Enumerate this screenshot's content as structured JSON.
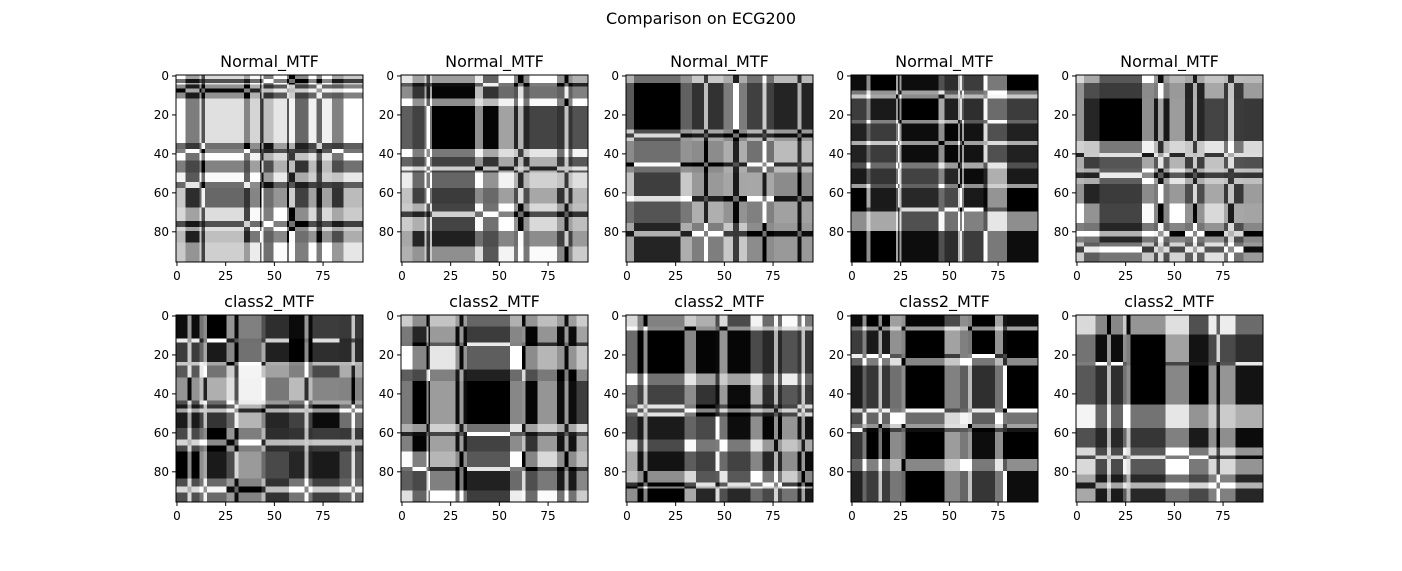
{
  "figure": {
    "suptitle": "Comparison on ECG200"
  },
  "colors": {
    "background": "#ffffff",
    "axis": "#000000",
    "colormap": "gray"
  },
  "chart_data": [
    {
      "type": "heatmap",
      "title": "Normal_MTF",
      "colormap": "gray",
      "size": 96,
      "xticks": [
        0,
        25,
        50,
        75
      ],
      "yticks": [
        0,
        20,
        40,
        60,
        80
      ],
      "bins": [
        0,
        5,
        12,
        35,
        38,
        44,
        50,
        58,
        68,
        80,
        86,
        96
      ],
      "levels": [
        1.0,
        0.1,
        0.88,
        0.0,
        0.95,
        0.3,
        0.92,
        0.25,
        0.85,
        0.3,
        0.9
      ],
      "noise_rows": [
        [
          2,
          3
        ],
        [
          7,
          8
        ],
        [
          38,
          39
        ],
        [
          55,
          57
        ],
        [
          75,
          77
        ]
      ],
      "noise_cols": [
        [
          13,
          14
        ],
        [
          43,
          44
        ],
        [
          57,
          60
        ],
        [
          72,
          74
        ]
      ]
    },
    {
      "type": "heatmap",
      "title": "Normal_MTF",
      "colormap": "gray",
      "size": 96,
      "xticks": [
        0,
        25,
        50,
        75
      ],
      "yticks": [
        0,
        20,
        40,
        60,
        80
      ],
      "bins": [
        0,
        6,
        12,
        16,
        38,
        42,
        50,
        58,
        66,
        80,
        88,
        96
      ],
      "levels": [
        0.9,
        0.2,
        0.95,
        0.0,
        0.95,
        0.2,
        0.95,
        0.3,
        0.85,
        0.25,
        0.8
      ],
      "noise_rows": [
        [
          4,
          5
        ],
        [
          47,
          48
        ],
        [
          70,
          72
        ]
      ],
      "noise_cols": [
        [
          13,
          14
        ],
        [
          60,
          62
        ],
        [
          84,
          85
        ]
      ]
    },
    {
      "type": "heatmap",
      "title": "Normal_MTF",
      "colormap": "gray",
      "size": 96,
      "xticks": [
        0,
        25,
        50,
        75
      ],
      "yticks": [
        0,
        20,
        40,
        60,
        80
      ],
      "bins": [
        0,
        4,
        28,
        34,
        50,
        62,
        76,
        96
      ],
      "levels": [
        0.7,
        0.0,
        0.6,
        0.55,
        0.65,
        0.5,
        0.6
      ],
      "noise_rows": [
        [
          30,
          31
        ],
        [
          45,
          46
        ],
        [
          62,
          64
        ],
        [
          80,
          82
        ]
      ],
      "noise_cols": [
        [
          40,
          41
        ],
        [
          55,
          57
        ],
        [
          70,
          71
        ],
        [
          88,
          89
        ]
      ]
    },
    {
      "type": "heatmap",
      "title": "Normal_MTF",
      "colormap": "gray",
      "size": 96,
      "xticks": [
        0,
        25,
        50,
        75
      ],
      "yticks": [
        0,
        20,
        40,
        60,
        80
      ],
      "bins": [
        0,
        8,
        10,
        23,
        25,
        45,
        48,
        56,
        58,
        68,
        80,
        96
      ],
      "levels": [
        0.05,
        0.9,
        0.1,
        0.92,
        0.05,
        0.9,
        0.15,
        0.88,
        0.1,
        0.9,
        0.05
      ],
      "noise_rows": [
        [
          10,
          11
        ],
        [
          34,
          35
        ],
        [
          68,
          69
        ]
      ],
      "noise_cols": [
        [
          24,
          25
        ],
        [
          55,
          56
        ],
        [
          68,
          69
        ]
      ]
    },
    {
      "type": "heatmap",
      "title": "Normal_MTF",
      "colormap": "gray",
      "size": 96,
      "xticks": [
        0,
        25,
        50,
        75
      ],
      "yticks": [
        0,
        20,
        40,
        60,
        80
      ],
      "bins": [
        0,
        4,
        12,
        34,
        40,
        48,
        56,
        66,
        76,
        86,
        96
      ],
      "levels": [
        0.85,
        0.3,
        0.0,
        0.95,
        0.35,
        0.9,
        0.3,
        0.85,
        0.3,
        0.6
      ],
      "noise_rows": [
        [
          40,
          41
        ],
        [
          50,
          52
        ],
        [
          80,
          82
        ],
        [
          88,
          90
        ]
      ],
      "noise_cols": [
        [
          42,
          44
        ],
        [
          60,
          61
        ],
        [
          78,
          80
        ]
      ]
    },
    {
      "type": "heatmap",
      "title": "class2_MTF",
      "colormap": "gray",
      "size": 96,
      "xticks": [
        0,
        25,
        50,
        75
      ],
      "yticks": [
        0,
        20,
        40,
        60,
        80
      ],
      "bins": [
        0,
        12,
        14,
        26,
        32,
        44,
        46,
        58,
        70,
        84,
        96
      ],
      "levels": [
        0.05,
        0.7,
        0.1,
        0.8,
        0.95,
        0.9,
        0.15,
        0.2,
        0.1,
        0.4
      ],
      "noise_rows": [
        [
          12,
          13
        ],
        [
          24,
          25
        ],
        [
          48,
          49
        ],
        [
          64,
          66
        ],
        [
          88,
          90
        ]
      ],
      "noise_cols": [
        [
          6,
          7
        ],
        [
          14,
          15
        ],
        [
          30,
          31
        ],
        [
          66,
          67
        ],
        [
          90,
          91
        ]
      ]
    },
    {
      "type": "heatmap",
      "title": "class2_MTF",
      "colormap": "gray",
      "size": 96,
      "xticks": [
        0,
        25,
        50,
        75
      ],
      "yticks": [
        0,
        20,
        40,
        60,
        80
      ],
      "bins": [
        0,
        6,
        14,
        28,
        34,
        56,
        62,
        70,
        80,
        90,
        96
      ],
      "levels": [
        0.8,
        0.15,
        0.9,
        0.1,
        0.0,
        0.9,
        0.2,
        0.85,
        0.1,
        0.8
      ],
      "noise_rows": [
        [
          14,
          15
        ],
        [
          60,
          61
        ],
        [
          78,
          79
        ]
      ],
      "noise_cols": [
        [
          13,
          14
        ],
        [
          30,
          31
        ],
        [
          62,
          63
        ],
        [
          84,
          85
        ]
      ]
    },
    {
      "type": "heatmap",
      "title": "class2_MTF",
      "colormap": "gray",
      "size": 96,
      "xticks": [
        0,
        25,
        50,
        75
      ],
      "yticks": [
        0,
        20,
        40,
        60,
        80
      ],
      "bins": [
        0,
        6,
        30,
        36,
        46,
        52,
        64,
        70,
        80,
        88,
        96
      ],
      "levels": [
        0.85,
        0.0,
        0.9,
        0.2,
        0.85,
        0.05,
        0.9,
        0.15,
        0.8,
        0.1
      ],
      "noise_rows": [
        [
          6,
          7
        ],
        [
          46,
          47
        ],
        [
          50,
          51
        ],
        [
          86,
          88
        ]
      ],
      "noise_cols": [
        [
          9,
          10
        ],
        [
          46,
          47
        ],
        [
          76,
          77
        ],
        [
          90,
          91
        ]
      ]
    },
    {
      "type": "heatmap",
      "title": "class2_MTF",
      "colormap": "gray",
      "size": 96,
      "xticks": [
        0,
        25,
        50,
        75
      ],
      "yticks": [
        0,
        20,
        40,
        60,
        80
      ],
      "bins": [
        0,
        6,
        8,
        20,
        26,
        48,
        56,
        60,
        74,
        80,
        96
      ],
      "levels": [
        0.05,
        0.9,
        0.1,
        0.88,
        0.0,
        0.85,
        0.9,
        0.05,
        0.9,
        0.05
      ],
      "noise_rows": [
        [
          20,
          21
        ],
        [
          48,
          49
        ],
        [
          58,
          59
        ]
      ],
      "noise_cols": [
        [
          14,
          15
        ],
        [
          26,
          27
        ],
        [
          60,
          61
        ],
        [
          78,
          79
        ]
      ]
    },
    {
      "type": "heatmap",
      "title": "class2_MTF",
      "colormap": "gray",
      "size": 96,
      "xticks": [
        0,
        25,
        50,
        75
      ],
      "yticks": [
        0,
        20,
        40,
        60,
        80
      ],
      "bins": [
        0,
        10,
        24,
        26,
        46,
        58,
        68,
        82,
        96
      ],
      "levels": [
        0.85,
        0.05,
        0.9,
        0.0,
        0.9,
        0.1,
        0.85,
        0.15
      ],
      "noise_rows": [
        [
          24,
          25
        ],
        [
          72,
          73
        ],
        [
          86,
          88
        ]
      ],
      "noise_cols": [
        [
          16,
          17
        ],
        [
          26,
          27
        ],
        [
          72,
          73
        ]
      ]
    }
  ]
}
